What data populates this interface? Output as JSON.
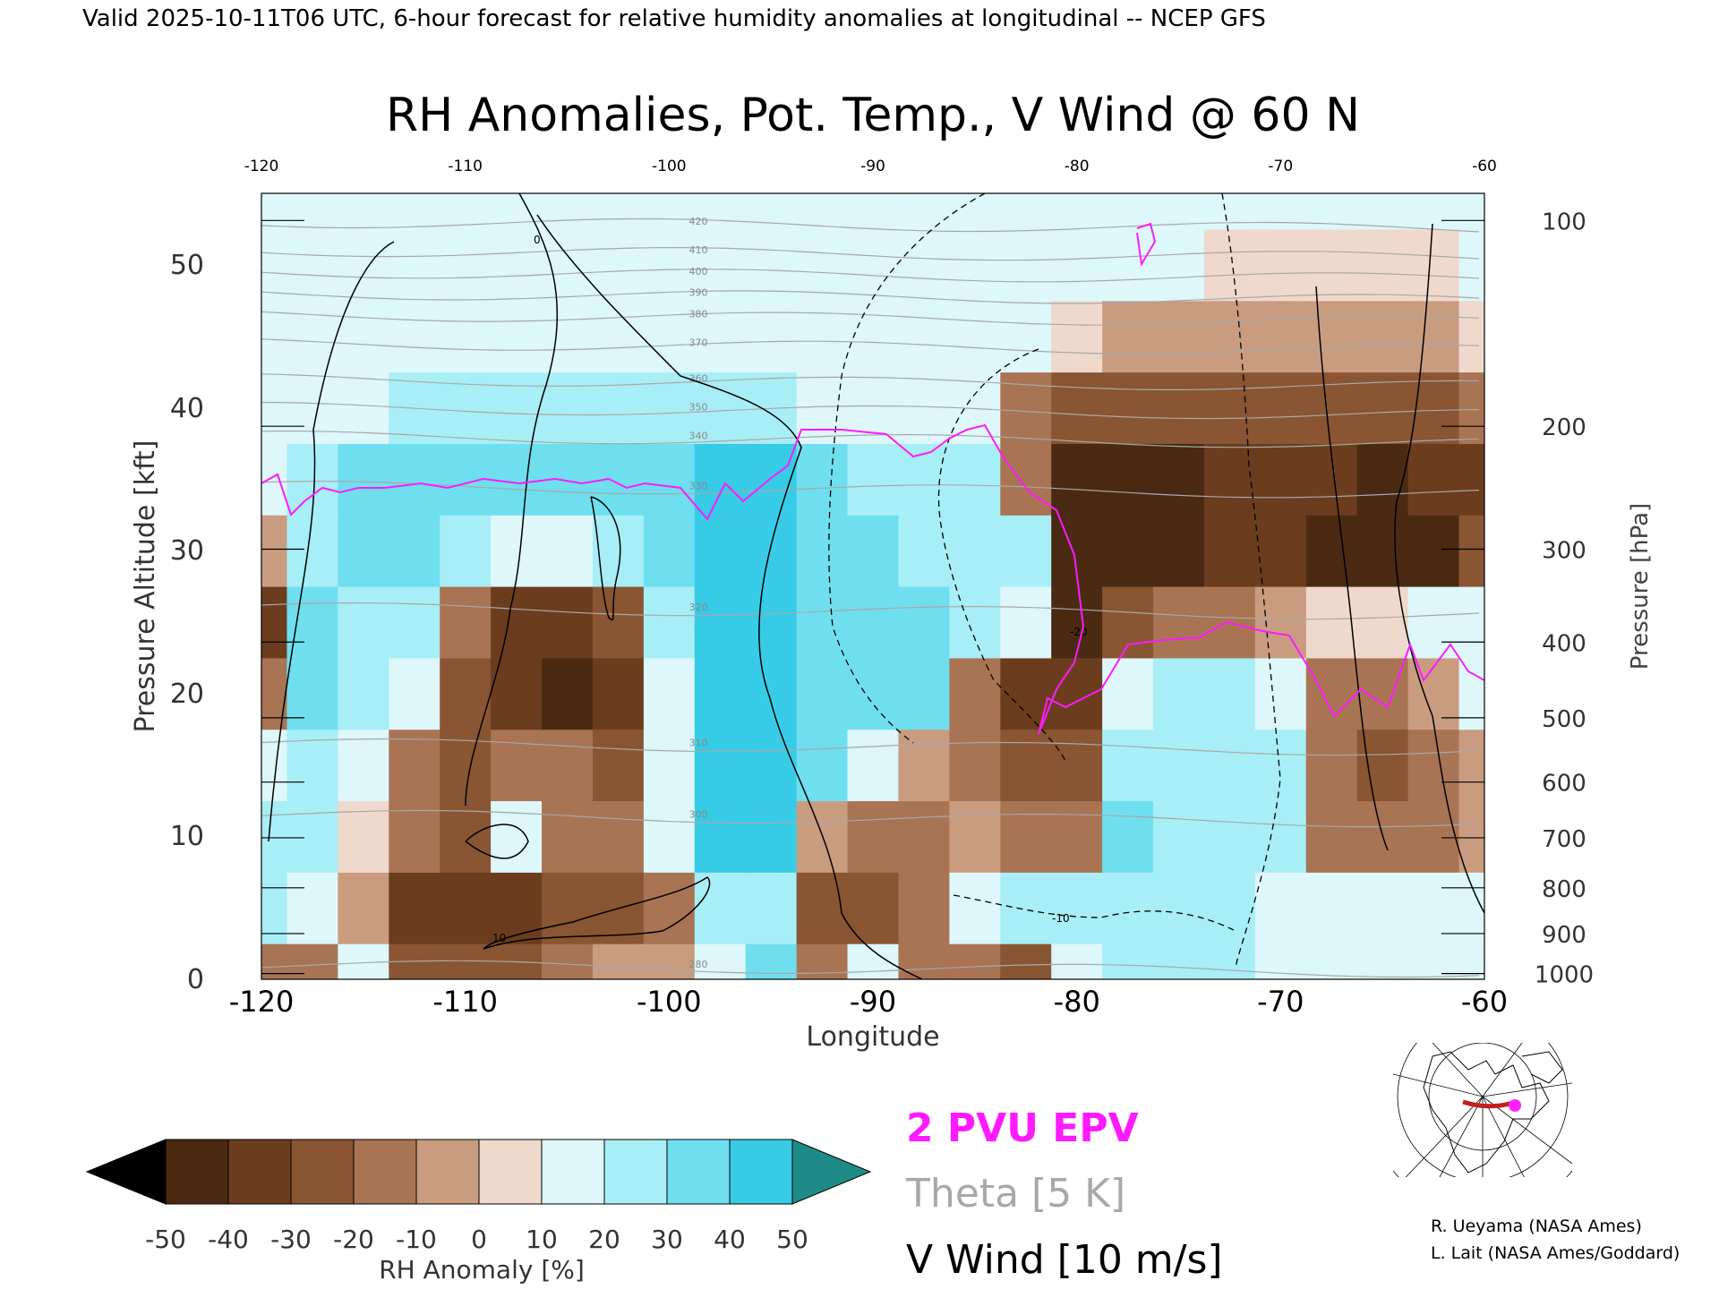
{
  "header_line": "Valid 2025-10-11T06 UTC, 6-hour forecast for relative humidity anomalies at longitudinal -- NCEP GFS",
  "chart_data": {
    "type": "heatmap",
    "title": "RH Anomalies, Pot. Temp., V Wind @ 60 N",
    "xlabel": "Longitude",
    "ylabel_left": "Pressure Altitude [kft]",
    "ylabel_right": "Pressure [hPa]",
    "xlim": [
      -120,
      -60
    ],
    "ylim_kft": [
      0,
      55
    ],
    "x_ticks": [
      "-120",
      "-110",
      "-100",
      "-90",
      "-80",
      "-70",
      "-60"
    ],
    "x_ticks_top": [
      "-120",
      "-110",
      "-100",
      "-90",
      "-80",
      "-70",
      "-60"
    ],
    "y_ticks": [
      "0",
      "10",
      "20",
      "30",
      "40",
      "50"
    ],
    "pressure_ticks": [
      {
        "label": "100",
        "kft": 53.1
      },
      {
        "label": "200",
        "kft": 38.7
      },
      {
        "label": "300",
        "kft": 30.1
      },
      {
        "label": "400",
        "kft": 23.6
      },
      {
        "label": "500",
        "kft": 18.3
      },
      {
        "label": "600",
        "kft": 13.8
      },
      {
        "label": "700",
        "kft": 9.9
      },
      {
        "label": "800",
        "kft": 6.4
      },
      {
        "label": "900",
        "kft": 3.2
      },
      {
        "label": "1000",
        "kft": 0.4
      }
    ],
    "lon": [
      -120,
      -117.5,
      -115,
      -112.5,
      -110,
      -107.5,
      -105,
      -102.5,
      -100,
      -97.5,
      -95,
      -92.5,
      -90,
      -87.5,
      -85,
      -82.5,
      -80,
      -77.5,
      -75,
      -72.5,
      -70,
      -67.5,
      -65,
      -62.5,
      -60
    ],
    "alt_kft": [
      0,
      5,
      10,
      15,
      20,
      25,
      30,
      35,
      40,
      45,
      50,
      55
    ],
    "rh_anomaly_pct": [
      [
        -20,
        -15,
        10,
        -25,
        -30,
        -25,
        -15,
        -10,
        -10,
        15,
        30,
        -20,
        5,
        -15,
        -20,
        -30,
        10,
        20,
        25,
        20,
        10,
        5,
        5,
        10,
        5
      ],
      [
        20,
        15,
        -10,
        -35,
        -40,
        -35,
        -30,
        -30,
        -20,
        20,
        25,
        -30,
        -25,
        -20,
        15,
        20,
        25,
        25,
        20,
        20,
        15,
        10,
        10,
        15,
        5
      ],
      [
        25,
        20,
        -5,
        -20,
        -25,
        10,
        -20,
        -20,
        15,
        40,
        45,
        -10,
        -15,
        -20,
        -10,
        -15,
        -20,
        30,
        25,
        25,
        20,
        -15,
        -20,
        -15,
        -10
      ],
      [
        10,
        25,
        15,
        -15,
        -25,
        -20,
        -20,
        -25,
        10,
        40,
        40,
        30,
        10,
        -10,
        -20,
        -25,
        -25,
        20,
        25,
        25,
        20,
        -20,
        -25,
        -20,
        -10
      ],
      [
        -20,
        30,
        20,
        10,
        -25,
        -40,
        -45,
        -40,
        15,
        40,
        40,
        35,
        30,
        30,
        -15,
        -35,
        -40,
        15,
        20,
        20,
        15,
        -15,
        -20,
        -10,
        5
      ],
      [
        -35,
        30,
        25,
        20,
        -15,
        -35,
        -35,
        -30,
        20,
        40,
        40,
        35,
        30,
        30,
        25,
        10,
        -45,
        -30,
        -20,
        -15,
        -10,
        -5,
        -5,
        5,
        15
      ],
      [
        -10,
        25,
        30,
        30,
        25,
        15,
        15,
        25,
        30,
        40,
        40,
        35,
        30,
        25,
        20,
        25,
        -45,
        -50,
        -45,
        -40,
        -40,
        -45,
        -50,
        -45,
        -30
      ],
      [
        15,
        25,
        30,
        35,
        30,
        35,
        30,
        35,
        35,
        45,
        45,
        30,
        25,
        20,
        20,
        -15,
        -45,
        -50,
        -45,
        -40,
        -40,
        -40,
        -45,
        -40,
        -35
      ],
      [
        5,
        10,
        15,
        20,
        20,
        20,
        20,
        20,
        25,
        25,
        20,
        15,
        10,
        5,
        0,
        -15,
        -25,
        -30,
        -30,
        -25,
        -25,
        -25,
        -25,
        -25,
        -20
      ],
      [
        0,
        0,
        5,
        10,
        10,
        10,
        10,
        15,
        15,
        10,
        10,
        5,
        5,
        5,
        0,
        0,
        -5,
        -10,
        -10,
        -10,
        -10,
        -10,
        -10,
        -10,
        -5
      ],
      [
        0,
        0,
        0,
        0,
        5,
        5,
        5,
        5,
        5,
        5,
        0,
        0,
        0,
        0,
        0,
        0,
        0,
        0,
        0,
        -5,
        -5,
        -5,
        -5,
        -5,
        0
      ],
      [
        0,
        0,
        0,
        0,
        0,
        0,
        0,
        0,
        0,
        0,
        0,
        0,
        0,
        0,
        0,
        0,
        0,
        0,
        0,
        0,
        0,
        0,
        0,
        0,
        0
      ]
    ],
    "theta_contours_K": [
      {
        "label": "280",
        "kft": 1.0
      },
      {
        "label": "300",
        "kft": 11.5
      },
      {
        "label": "310",
        "kft": 16.5
      },
      {
        "label": "320",
        "kft": 26.0
      },
      {
        "label": "330",
        "kft": 34.5
      },
      {
        "label": "340",
        "kft": 38.0
      },
      {
        "label": "350",
        "kft": 40.0
      },
      {
        "label": "360",
        "kft": 42.0
      },
      {
        "label": "370",
        "kft": 44.5
      },
      {
        "label": "380",
        "kft": 46.5
      },
      {
        "label": "390",
        "kft": 48.0
      },
      {
        "label": "400",
        "kft": 49.5
      },
      {
        "label": "410",
        "kft": 51.0
      },
      {
        "label": "420",
        "kft": 53.0
      }
    ],
    "v_wind_contour_labels": [
      "0",
      "10",
      "-10",
      "-20"
    ],
    "colorbar": {
      "label": "RH Anomaly [%]",
      "ticks": [
        "-50",
        "-40",
        "-30",
        "-20",
        "-10",
        "0",
        "10",
        "20",
        "30",
        "40",
        "50"
      ],
      "colors": [
        "#4a2a12",
        "#6b3d1e",
        "#8a5533",
        "#a97454",
        "#c99c80",
        "#efd9cc",
        "#ddf7fb",
        "#a8eef6",
        "#6fdff0",
        "#38cbe6",
        "#10a9c7",
        "#0a7f97"
      ],
      "under_color": "#000000",
      "over_color": "#1e8b87"
    },
    "legend": [
      {
        "label": "2 PVU EPV",
        "color": "#ff1aff"
      },
      {
        "label": "Theta [5 K]",
        "color": "#a8a8a8"
      },
      {
        "label": "V Wind [10 m/s]",
        "color": "#000000"
      }
    ],
    "inset_map": {
      "marker_color": "#ff22ff",
      "line_color": "#c0201c"
    }
  },
  "credits": [
    "R. Ueyama (NASA Ames)",
    "L. Lait (NASA Ames/Goddard)"
  ]
}
